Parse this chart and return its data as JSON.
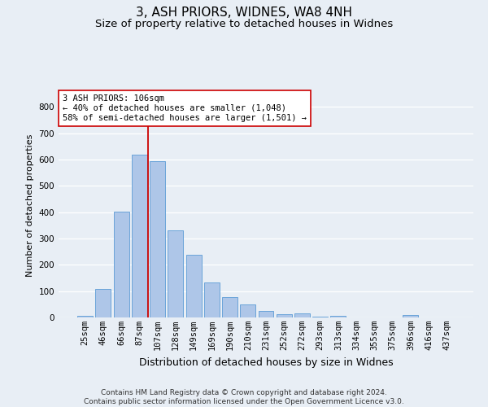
{
  "title1": "3, ASH PRIORS, WIDNES, WA8 4NH",
  "title2": "Size of property relative to detached houses in Widnes",
  "xlabel": "Distribution of detached houses by size in Widnes",
  "ylabel": "Number of detached properties",
  "footnote": "Contains HM Land Registry data © Crown copyright and database right 2024.\nContains public sector information licensed under the Open Government Licence v3.0.",
  "categories": [
    "25sqm",
    "46sqm",
    "66sqm",
    "87sqm",
    "107sqm",
    "128sqm",
    "149sqm",
    "169sqm",
    "190sqm",
    "210sqm",
    "231sqm",
    "252sqm",
    "272sqm",
    "293sqm",
    "313sqm",
    "334sqm",
    "355sqm",
    "375sqm",
    "396sqm",
    "416sqm",
    "437sqm"
  ],
  "values": [
    7,
    107,
    403,
    617,
    593,
    330,
    237,
    132,
    77,
    51,
    25,
    13,
    15,
    4,
    5,
    0,
    0,
    0,
    8,
    0,
    0
  ],
  "bar_color": "#aec6e8",
  "bar_edge_color": "#5b9bd5",
  "vline_color": "#cc0000",
  "vline_pos": 3.5,
  "annotation_text": "3 ASH PRIORS: 106sqm\n← 40% of detached houses are smaller (1,048)\n58% of semi-detached houses are larger (1,501) →",
  "annotation_box_color": "#ffffff",
  "annotation_box_edge": "#cc0000",
  "ylim": [
    0,
    850
  ],
  "yticks": [
    0,
    100,
    200,
    300,
    400,
    500,
    600,
    700,
    800
  ],
  "background_color": "#e8eef5",
  "grid_color": "#ffffff",
  "title1_fontsize": 11,
  "title2_fontsize": 9.5,
  "ylabel_fontsize": 8,
  "xlabel_fontsize": 9,
  "tick_fontsize": 7.5,
  "annot_fontsize": 7.5,
  "footnote_fontsize": 6.5
}
